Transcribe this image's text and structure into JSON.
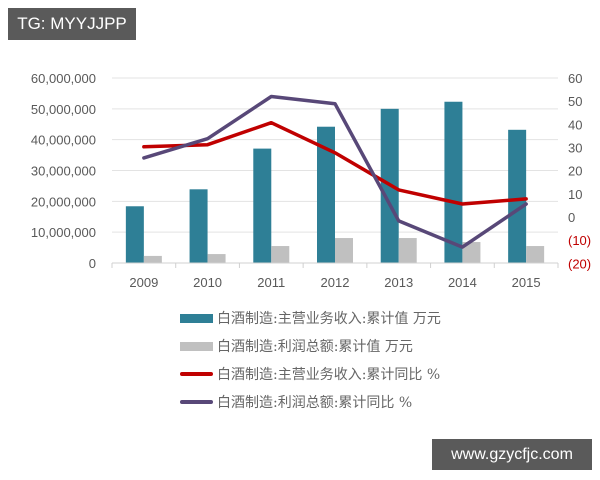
{
  "watermarks": {
    "top_left": "TG: MYYJJPP",
    "bottom_right": "www.gzycfjc.com"
  },
  "colors": {
    "revenue_bar": "#2e7f96",
    "profit_bar": "#c0c0c0",
    "revenue_yoy_line": "#c00000",
    "profit_yoy_line": "#584878",
    "gridline": "#e3e3e3",
    "negative_tick": "#c00000"
  },
  "axes": {
    "left_ticks": [
      "60,000,000",
      "50,000,000",
      "40,000,000",
      "30,000,000",
      "20,000,000",
      "10,000,000",
      "0"
    ],
    "right_ticks": [
      "60",
      "50",
      "40",
      "30",
      "20",
      "10",
      "0",
      "(10)",
      "(20)"
    ],
    "x_ticks": [
      "2009",
      "2010",
      "2011",
      "2012",
      "2013",
      "2014",
      "2015"
    ]
  },
  "legend": [
    {
      "label": "白酒制造:主营业务收入:累计值 万元",
      "kind": "bar",
      "color": "#2e7f96"
    },
    {
      "label": "白酒制造:利润总额:累计值 万元",
      "kind": "bar",
      "color": "#c0c0c0"
    },
    {
      "label": "白酒制造:主营业务收入:累计同比 %",
      "kind": "line",
      "color": "#c00000"
    },
    {
      "label": "白酒制造:利润总额:累计同比 %",
      "kind": "line",
      "color": "#584878"
    }
  ],
  "chart_data": {
    "type": "bar",
    "title": "",
    "categories": [
      "2009",
      "2010",
      "2011",
      "2012",
      "2013",
      "2014",
      "2015"
    ],
    "xlabel": "",
    "ylabel": "",
    "ylim": [
      0,
      60000000
    ],
    "y2lim": [
      -20,
      60
    ],
    "grid": true,
    "legend_position": "bottom",
    "series": [
      {
        "name": "白酒制造:主营业务收入:累计值 万元",
        "type": "bar",
        "axis": "left",
        "values": [
          18400000,
          23900000,
          37100000,
          44200000,
          50000000,
          52300000,
          43200000
        ]
      },
      {
        "name": "白酒制造:利润总额:累计值 万元",
        "type": "bar",
        "axis": "left",
        "values": [
          2300000,
          2900000,
          5500000,
          8100000,
          8100000,
          6800000,
          5500000
        ]
      },
      {
        "name": "白酒制造:主营业务收入:累计同比 %",
        "type": "line",
        "axis": "right",
        "values": [
          30.3,
          31.2,
          40.7,
          27.7,
          11.7,
          5.6,
          7.8
        ]
      },
      {
        "name": "白酒制造:利润总额:累计同比 %",
        "type": "line",
        "axis": "right",
        "values": [
          25.5,
          33.8,
          52.0,
          48.9,
          -1.7,
          -13.0,
          5.6
        ]
      }
    ]
  }
}
